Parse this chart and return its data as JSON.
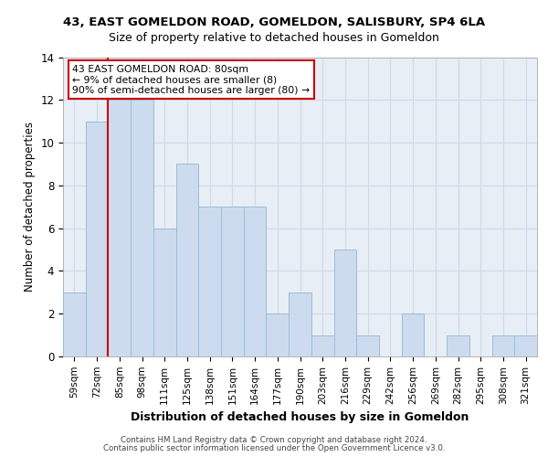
{
  "title1": "43, EAST GOMELDON ROAD, GOMELDON, SALISBURY, SP4 6LA",
  "title2": "Size of property relative to detached houses in Gomeldon",
  "xlabel": "Distribution of detached houses by size in Gomeldon",
  "ylabel": "Number of detached properties",
  "categories": [
    "59sqm",
    "72sqm",
    "85sqm",
    "98sqm",
    "111sqm",
    "125sqm",
    "138sqm",
    "151sqm",
    "164sqm",
    "177sqm",
    "190sqm",
    "203sqm",
    "216sqm",
    "229sqm",
    "242sqm",
    "256sqm",
    "269sqm",
    "282sqm",
    "295sqm",
    "308sqm",
    "321sqm"
  ],
  "values": [
    3,
    11,
    12,
    12,
    6,
    9,
    7,
    7,
    7,
    2,
    3,
    1,
    5,
    1,
    0,
    2,
    0,
    1,
    0,
    1,
    1
  ],
  "bar_color": "#ccdcee",
  "bar_edge_color": "#9bbcd8",
  "vline_x": 1.5,
  "vline_color": "#cc0000",
  "annotation_title": "43 EAST GOMELDON ROAD: 80sqm",
  "annotation_line1": "← 9% of detached houses are smaller (8)",
  "annotation_line2": "90% of semi-detached houses are larger (80) →",
  "annotation_box_color": "#ffffff",
  "annotation_box_edge": "#cc0000",
  "ylim": [
    0,
    14
  ],
  "yticks": [
    0,
    2,
    4,
    6,
    8,
    10,
    12,
    14
  ],
  "grid_color": "#d0d8e8",
  "bg_color": "#e8eef6",
  "footer1": "Contains HM Land Registry data © Crown copyright and database right 2024.",
  "footer2": "Contains public sector information licensed under the Open Government Licence v3.0."
}
